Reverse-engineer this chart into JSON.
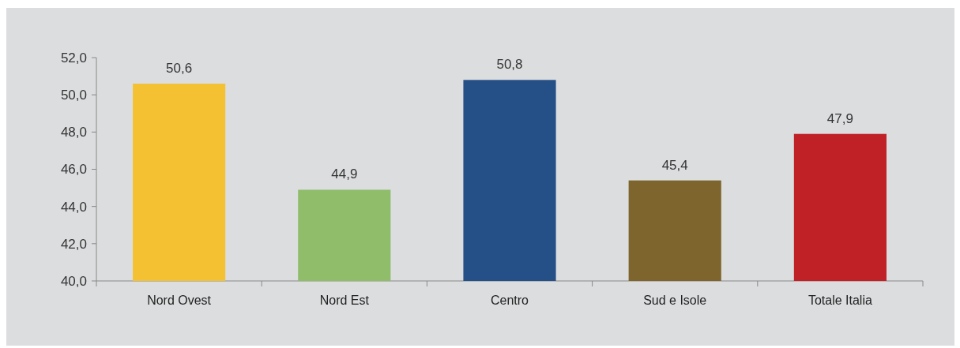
{
  "chart_data": {
    "type": "bar",
    "categories": [
      "Nord Ovest",
      "Nord Est",
      "Centro",
      "Sud e Isole",
      "Totale Italia"
    ],
    "values": [
      50.6,
      44.9,
      50.8,
      45.4,
      47.9
    ],
    "colors": [
      "#f4c133",
      "#8fbd6a",
      "#254f87",
      "#7e652d",
      "#c02126"
    ],
    "value_labels": [
      "50,6",
      "44,9",
      "50,8",
      "45,4",
      "47,9"
    ],
    "ylim": [
      40,
      52
    ],
    "yticks": [
      {
        "value": 40,
        "label": "40,0"
      },
      {
        "value": 42,
        "label": "42,0"
      },
      {
        "value": 44,
        "label": "44,0"
      },
      {
        "value": 46,
        "label": "46,0"
      },
      {
        "value": 48,
        "label": "48,0"
      },
      {
        "value": 50,
        "label": "50,0"
      },
      {
        "value": 52,
        "label": "52,0"
      }
    ],
    "grid": false
  }
}
